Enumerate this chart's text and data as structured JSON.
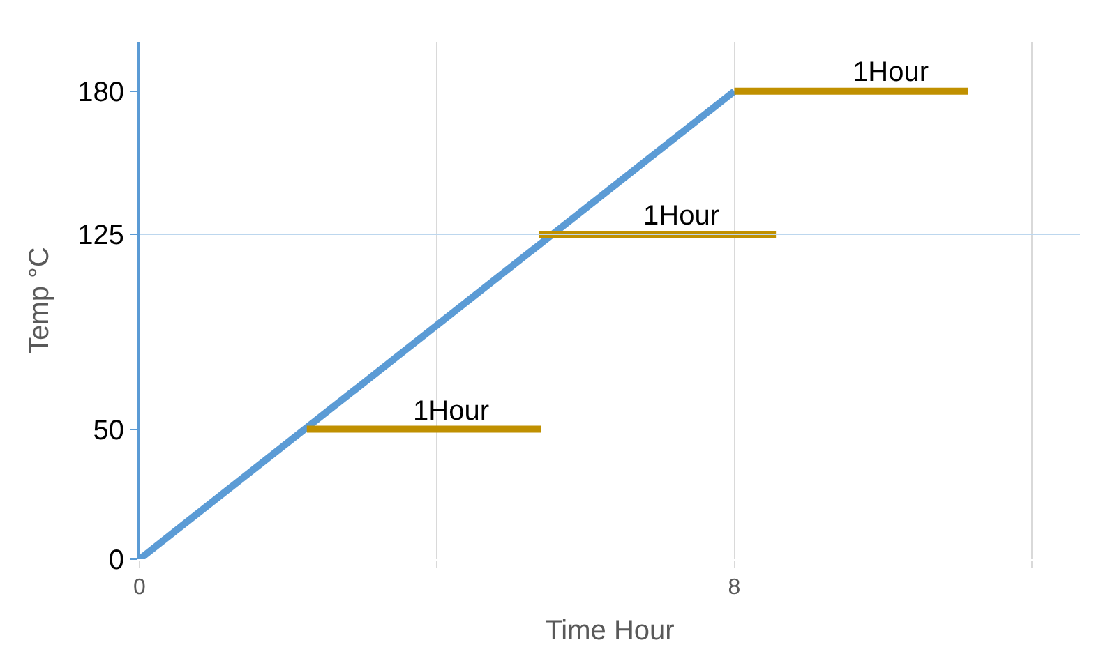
{
  "chart_data": {
    "type": "line",
    "xlabel": "Time Hour",
    "ylabel": "Temp °C",
    "series": [
      {
        "color": "#5b9bd5",
        "x": [
          0,
          8
        ],
        "values": [
          0,
          180
        ]
      },
      {
        "color": "#c09000",
        "x": [
          2.25,
          5.4
        ],
        "values": [
          50,
          50
        ]
      },
      {
        "color": "#c09000",
        "x": [
          5.37,
          8.56
        ],
        "values": [
          125,
          125
        ]
      },
      {
        "color": "#c09000",
        "x": [
          8,
          11.14
        ],
        "values": [
          180,
          180
        ]
      }
    ],
    "annotations": [
      {
        "text": "1Hour",
        "x": 4.2,
        "y": 50
      },
      {
        "text": "1Hour",
        "x": 7.3,
        "y": 125
      },
      {
        "text": "1Hour",
        "x": 10.1,
        "y": 180
      }
    ],
    "ref_lines": [
      {
        "axis": "y",
        "value": 125,
        "color": "#bdd7ee"
      }
    ],
    "xlim": [
      0,
      12.65
    ],
    "ylim": [
      0,
      199
    ],
    "xticks": [
      0,
      {
        "value": 4,
        "label": null
      },
      8,
      {
        "value": 12,
        "label": null
      }
    ],
    "yticks": [
      0,
      50,
      125,
      180
    ],
    "grid": "x",
    "legend": false,
    "marker": "none",
    "line_style": "solid"
  }
}
